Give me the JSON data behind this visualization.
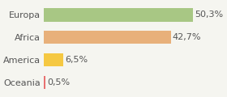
{
  "categories": [
    "Europa",
    "Africa",
    "America",
    "Oceania"
  ],
  "values": [
    50.3,
    42.7,
    6.5,
    0.5
  ],
  "labels": [
    "50,3%",
    "42,7%",
    "6,5%",
    "0,5%"
  ],
  "bar_colors": [
    "#a8c784",
    "#e8b07a",
    "#f5c842",
    "#e87070"
  ],
  "background_color": "#f5f5f0",
  "text_color": "#555555",
  "bar_label_fontsize": 8,
  "category_fontsize": 8,
  "xlim": [
    0,
    60
  ]
}
